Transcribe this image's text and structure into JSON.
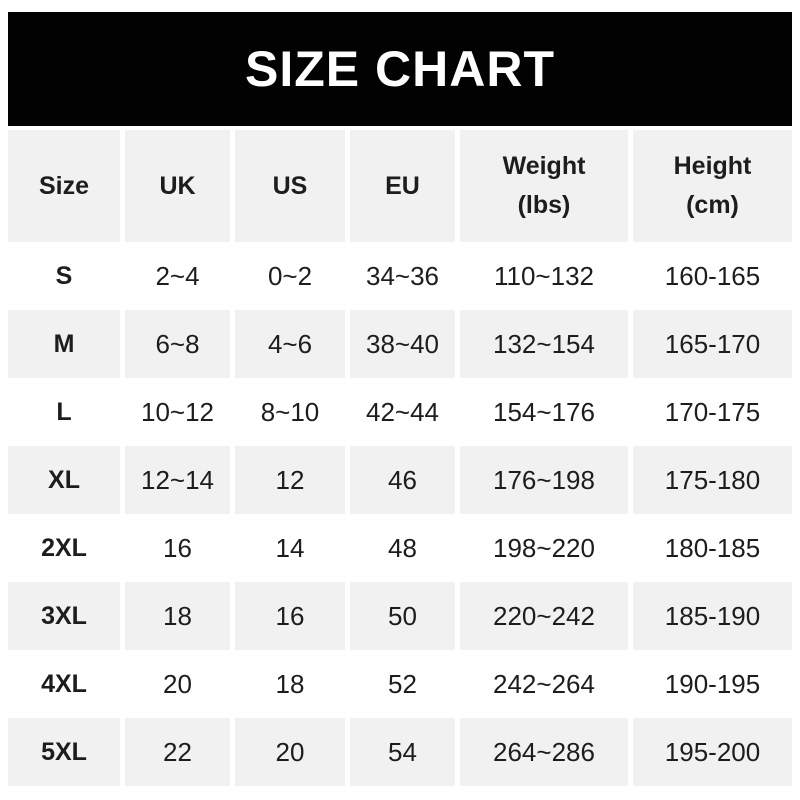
{
  "title": "SIZE CHART",
  "colors": {
    "banner_bg": "#020202",
    "title_color": "#ffffff",
    "row_shaded_bg": "#f1f1f2",
    "text": "#1d1d1f",
    "page_bg": "#ffffff"
  },
  "chart_data": {
    "type": "table",
    "title": "SIZE CHART",
    "column_labels": [
      "Size",
      "UK",
      "US",
      "EU",
      "Weight (lbs)",
      "Height (cm)"
    ],
    "headers": [
      {
        "line1": "Size",
        "line2": ""
      },
      {
        "line1": "UK",
        "line2": ""
      },
      {
        "line1": "US",
        "line2": ""
      },
      {
        "line1": "EU",
        "line2": ""
      },
      {
        "line1": "Weight",
        "line2": "(lbs)"
      },
      {
        "line1": "Height",
        "line2": "(cm)"
      }
    ],
    "rows": [
      {
        "size": "S",
        "uk": "2~4",
        "us": "0~2",
        "eu": "34~36",
        "weight_lbs": "110~132",
        "height_cm": "160-165"
      },
      {
        "size": "M",
        "uk": "6~8",
        "us": "4~6",
        "eu": "38~40",
        "weight_lbs": "132~154",
        "height_cm": "165-170"
      },
      {
        "size": "L",
        "uk": "10~12",
        "us": "8~10",
        "eu": "42~44",
        "weight_lbs": "154~176",
        "height_cm": "170-175"
      },
      {
        "size": "XL",
        "uk": "12~14",
        "us": "12",
        "eu": "46",
        "weight_lbs": "176~198",
        "height_cm": "175-180"
      },
      {
        "size": "2XL",
        "uk": "16",
        "us": "14",
        "eu": "48",
        "weight_lbs": "198~220",
        "height_cm": "180-185"
      },
      {
        "size": "3XL",
        "uk": "18",
        "us": "16",
        "eu": "50",
        "weight_lbs": "220~242",
        "height_cm": "185-190"
      },
      {
        "size": "4XL",
        "uk": "20",
        "us": "18",
        "eu": "52",
        "weight_lbs": "242~264",
        "height_cm": "190-195"
      },
      {
        "size": "5XL",
        "uk": "22",
        "us": "20",
        "eu": "54",
        "weight_lbs": "264~286",
        "height_cm": "195-200"
      }
    ]
  }
}
